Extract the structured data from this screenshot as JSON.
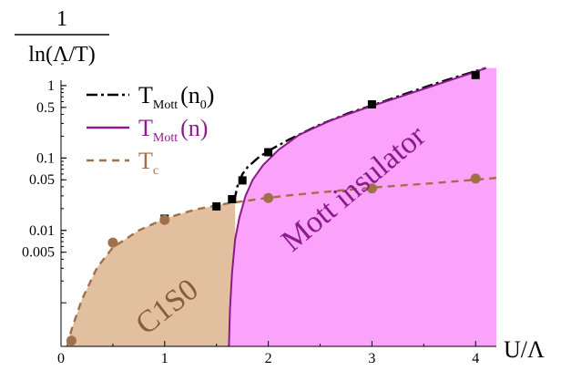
{
  "chart_data": {
    "type": "line",
    "ylabel": {
      "numerator": "1",
      "denominator": "ln(Λ/T)"
    },
    "xlabel": "U/Λ",
    "y_scale": "log",
    "xlim": [
      0,
      4.2
    ],
    "ylim": [
      0.00025,
      2
    ],
    "x_ticks": [
      {
        "value": 0,
        "label": "0"
      },
      {
        "value": 1,
        "label": "1"
      },
      {
        "value": 2,
        "label": "2"
      },
      {
        "value": 3,
        "label": "3"
      },
      {
        "value": 4,
        "label": "4"
      }
    ],
    "y_ticks": [
      {
        "value": 1,
        "label": "1"
      },
      {
        "value": 0.5,
        "label": "0.5"
      },
      {
        "value": 0.1,
        "label": "0.1"
      },
      {
        "value": 0.05,
        "label": "0.05"
      },
      {
        "value": 0.01,
        "label": "0.01"
      },
      {
        "value": 0.005,
        "label": "0.005"
      }
    ],
    "legend_position": "top-left",
    "legend": [
      {
        "base": "T",
        "sub": "Mott",
        "arg": "(n",
        "arg_sub": "0",
        "close": ")",
        "style": "dash-dot",
        "color": "#000000"
      },
      {
        "base": "T",
        "sub": "Mott",
        "arg": "(n)",
        "arg_sub": "",
        "close": "",
        "style": "solid",
        "color": "#8b1a8b"
      },
      {
        "base": "T",
        "sub": "c",
        "arg": "",
        "arg_sub": "",
        "close": "",
        "style": "dashed",
        "color": "#a0704a"
      }
    ],
    "regions": [
      {
        "label": "C1S0",
        "color": "#e2bf9f",
        "text_color": "#8a5c3a"
      },
      {
        "label": "Mott insulator",
        "color": "#fba3fb",
        "text_color": "#8b1a8b"
      }
    ],
    "series": [
      {
        "style": "dash-dot",
        "color": "#000000",
        "x": [
          1.67,
          1.7,
          1.75,
          1.8,
          1.9,
          2.0,
          2.2,
          2.5,
          2.8,
          3.0,
          3.3,
          3.6,
          3.8,
          4.0,
          4.1
        ],
        "y": [
          0.025,
          0.04,
          0.06,
          0.075,
          0.1,
          0.125,
          0.18,
          0.29,
          0.43,
          0.53,
          0.75,
          1.05,
          1.3,
          1.58,
          1.75
        ]
      },
      {
        "style": "solid",
        "color": "#8b1a8b",
        "x": [
          1.62,
          1.63,
          1.65,
          1.68,
          1.72,
          1.78,
          1.85,
          1.95,
          2.1,
          2.3,
          2.6,
          2.9,
          3.2,
          3.5,
          3.8,
          4.0,
          4.1
        ],
        "y": [
          0.00025,
          0.0008,
          0.0026,
          0.0075,
          0.015,
          0.03,
          0.05,
          0.08,
          0.13,
          0.21,
          0.33,
          0.47,
          0.65,
          0.9,
          1.25,
          1.55,
          1.75
        ]
      },
      {
        "style": "dashed",
        "color": "#a0704a",
        "x": [
          0.06,
          0.1,
          0.2,
          0.35,
          0.5,
          0.75,
          1.0,
          1.3,
          1.6,
          1.9,
          2.2,
          2.6,
          3.0,
          3.5,
          4.0,
          4.2
        ],
        "y": [
          0.00025,
          0.00042,
          0.0011,
          0.0031,
          0.0058,
          0.01,
          0.0145,
          0.0195,
          0.0235,
          0.027,
          0.0305,
          0.0345,
          0.039,
          0.044,
          0.05,
          0.053
        ]
      }
    ],
    "points": [
      {
        "marker": "square",
        "color": "#000000",
        "x": [
          1.0,
          1.5,
          1.65,
          1.75,
          2.0,
          3.0,
          4.0
        ],
        "y": [
          0.0145,
          0.0215,
          0.027,
          0.049,
          0.12,
          0.55,
          1.4
        ]
      },
      {
        "marker": "circle",
        "color": "#a0704a",
        "x": [
          0.1,
          0.5,
          1.0,
          2.0,
          3.0,
          4.0
        ],
        "y": [
          0.0003,
          0.0068,
          0.014,
          0.028,
          0.038,
          0.052
        ]
      }
    ]
  }
}
